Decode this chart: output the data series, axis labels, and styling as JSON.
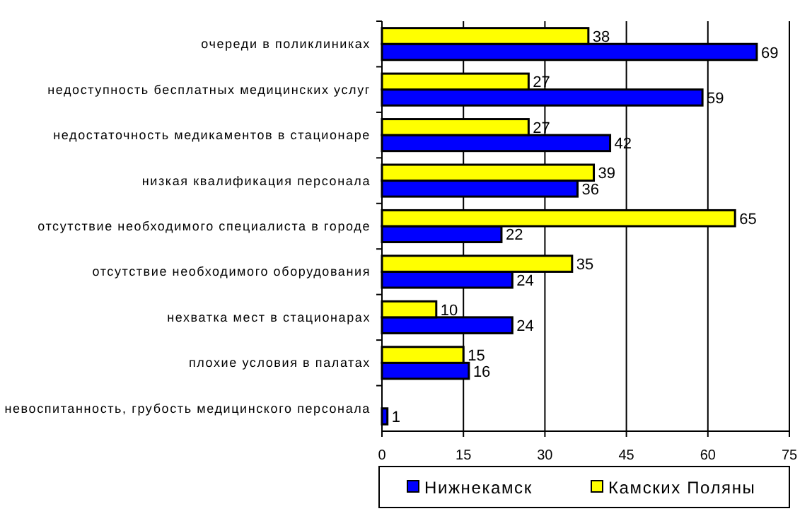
{
  "chart_data": {
    "type": "bar",
    "orientation": "horizontal",
    "categories": [
      "очереди в поликлиниках",
      "недоступность бесплатных медицинских услуг",
      "недостаточность медикаментов в стационаре",
      "низкая квалификация персонала",
      "отсутствие необходимого специалиста в городе",
      "отсутствие необходимого оборудования",
      "нехватка мест в стационарах",
      "плохие условия в палатах",
      "невоспитанность, грубость медицинского персонала"
    ],
    "series": [
      {
        "name": "Нижнекамск",
        "color": "#0000ff",
        "values": [
          69,
          59,
          42,
          36,
          22,
          24,
          24,
          16,
          1
        ]
      },
      {
        "name": "Камских Поляны",
        "color": "#ffff00",
        "values": [
          38,
          27,
          27,
          39,
          65,
          35,
          10,
          15,
          null
        ]
      }
    ],
    "xlim": [
      0,
      75
    ],
    "xticks": [
      0,
      15,
      30,
      45,
      60,
      75
    ],
    "grid": "x",
    "legend": "bottom",
    "data_labels": true
  }
}
